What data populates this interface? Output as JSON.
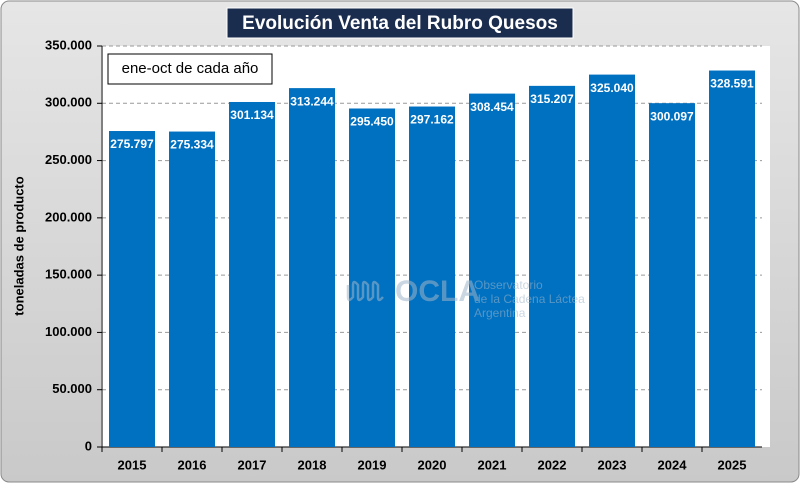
{
  "chart_data": {
    "type": "bar",
    "title": "Evolución Venta del Rubro Quesos",
    "annotation": "ene-oct de cada año",
    "y_label": "toneladas de producto",
    "categories": [
      "2015",
      "2016",
      "2017",
      "2018",
      "2019",
      "2020",
      "2021",
      "2022",
      "2023",
      "2024",
      "2025"
    ],
    "values": [
      275797,
      275334,
      301134,
      313244,
      295450,
      297162,
      308454,
      315207,
      325040,
      300097,
      328591
    ],
    "value_labels": [
      "275.797",
      "275.334",
      "301.134",
      "313.244",
      "295.450",
      "297.162",
      "308.454",
      "315.207",
      "325.040",
      "300.097",
      "328.591"
    ],
    "color": "#0070c0",
    "ylim": [
      0,
      350000
    ],
    "yticks": [
      0,
      {
        "value": 50000,
        "label": "50.000"
      },
      {
        "value": 100000,
        "label": "100.000"
      },
      {
        "value": 150000,
        "label": "150.000"
      },
      {
        "value": 200000,
        "label": "200.000"
      },
      {
        "value": 250000,
        "label": "250.000"
      },
      {
        "value": 300000,
        "label": "300.000"
      },
      {
        "value": 350000,
        "label": "350.000"
      }
    ],
    "grid": true,
    "watermark": {
      "logo": "OCLA",
      "lines": [
        "Observatorio",
        "de la Cadena Láctea",
        "Argentina"
      ]
    }
  }
}
